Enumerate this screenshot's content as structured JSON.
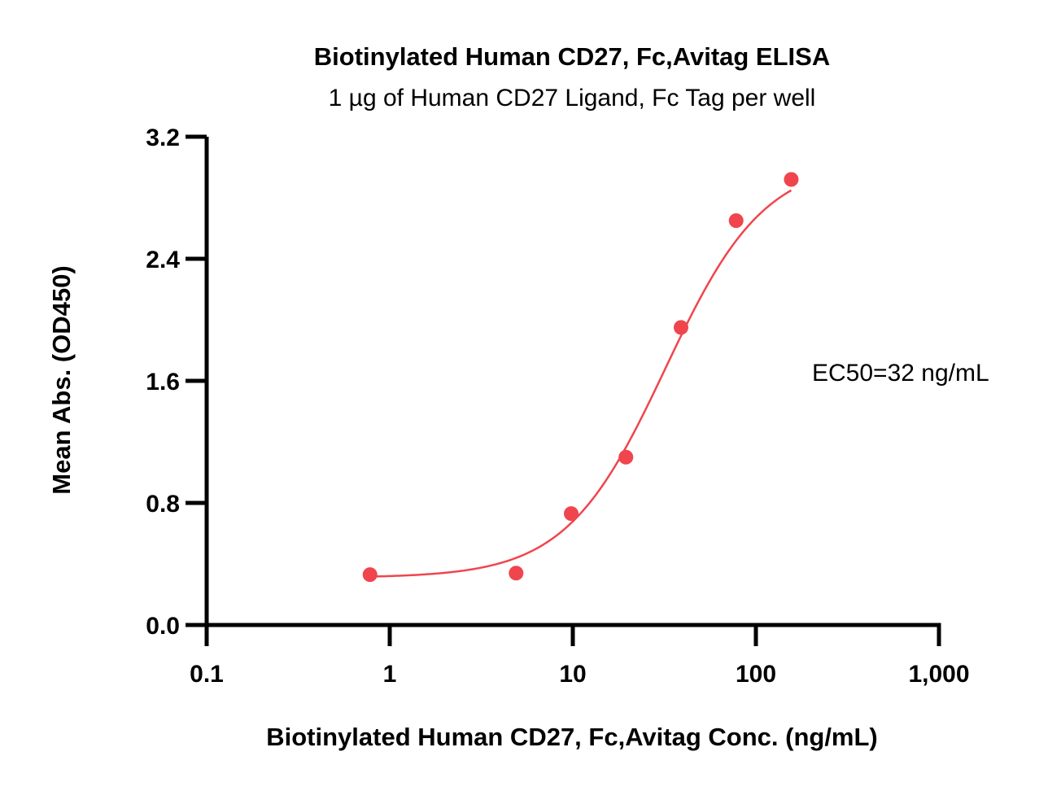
{
  "chart_data": {
    "type": "scatter",
    "title": "Biotinylated Human CD27, Fc,Avitag ELISA",
    "subtitle": "1 µg of Human CD27 Ligand, Fc Tag per well",
    "xlabel": "Biotinylated Human CD27, Fc,Avitag Conc. (ng/mL)",
    "ylabel": "Mean Abs. (OD450)",
    "x_scale": "log",
    "xlim": [
      0.1,
      1000
    ],
    "ylim": [
      0,
      3.2
    ],
    "x_ticks": [
      0.1,
      1,
      10,
      100,
      1000
    ],
    "x_tick_labels": [
      "0.1",
      "1",
      "10",
      "100",
      "1,000"
    ],
    "y_ticks": [
      0,
      0.8,
      1.6,
      2.4,
      3.2
    ],
    "y_tick_labels": [
      "0.0",
      "0.8",
      "1.6",
      "2.4",
      "3.2"
    ],
    "grid": false,
    "series": [
      {
        "color": "#f0454d",
        "x": [
          0.78,
          4.9,
          9.8,
          19.5,
          39,
          78,
          156
        ],
        "y": [
          0.33,
          0.34,
          0.73,
          1.1,
          1.95,
          2.65,
          2.92
        ],
        "fit": {
          "model": "4PL",
          "bottom": 0.31,
          "top": 3.05,
          "ec50": 32,
          "hill": 1.6
        }
      }
    ],
    "annotation": "EC50=32 ng/mL"
  }
}
